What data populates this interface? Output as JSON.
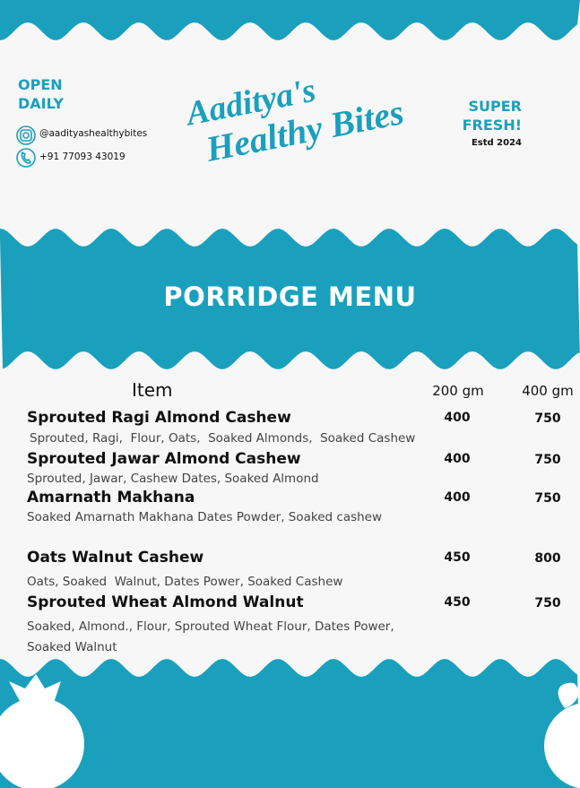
{
  "header": {
    "open": "OPEN DAILY",
    "instagram": "@aadityashealthybites",
    "phone": "+91 77093 43019",
    "title_line1": "Aaditya's",
    "title_line2": "Healthy Bites",
    "fresh": "SUPER FRESH!",
    "established": "Estd 2024"
  },
  "banner": "PORRIDGE MENU",
  "table": {
    "headers": [
      "Item",
      "200 gm",
      "400 gm"
    ],
    "rows": [
      {
        "name": "Sprouted Ragi Almond Cashew",
        "description": "Sprouted, Ragi,  Flour, Oats,  Soaked Almonds,  Soaked Cashew",
        "prices": [
          400,
          750
        ]
      },
      {
        "name": "Sprouted Jawar Almond Cashew",
        "description": "Sprouted, Jawar, Cashew Dates, Soaked Almond",
        "prices": [
          400,
          750
        ]
      },
      {
        "name": "Amarnath Makhana",
        "description": "Soaked Amarnath Makhana Dates Powder, Soaked cashew",
        "prices": [
          400,
          750
        ]
      },
      {
        "name": "Oats Walnut Cashew",
        "description": "Oats, Soaked  Walnut, Dates Power, Soaked Cashew",
        "prices": [
          450,
          800
        ]
      },
      {
        "name": "Sprouted Wheat Almond Walnut",
        "description": "Soaked, Almond., Flour, Sprouted Wheat Flour, Dates Power, Soaked Walnut",
        "prices": [
          450,
          750
        ]
      }
    ]
  }
}
